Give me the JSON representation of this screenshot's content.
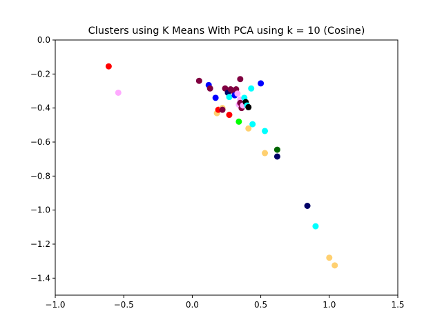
{
  "chart_data": {
    "type": "scatter",
    "title": "Clusters using K Means With PCA using k = 10 (Cosine)",
    "xlabel": "",
    "ylabel": "",
    "xlim": [
      -1.0,
      1.5
    ],
    "ylim": [
      -1.5,
      0.0
    ],
    "x_ticks": [
      -1.0,
      -0.5,
      0.0,
      0.5,
      1.0,
      1.5
    ],
    "x_tick_labels": [
      "−1.0",
      "−0.5",
      "0.0",
      "0.5",
      "1.0",
      "1.5"
    ],
    "y_ticks": [
      0.0,
      -0.2,
      -0.4,
      -0.6,
      -0.8,
      -1.0,
      -1.2,
      -1.4
    ],
    "y_tick_labels": [
      "0.0",
      "−0.2",
      "−0.4",
      "−0.6",
      "−0.8",
      "−1.0",
      "−1.2",
      "−1.4"
    ],
    "grid": false,
    "legend": false,
    "points": [
      {
        "x": -0.61,
        "y": -0.155,
        "color": "#ff0000"
      },
      {
        "x": -0.54,
        "y": -0.31,
        "color": "#ffaaff"
      },
      {
        "x": 0.05,
        "y": -0.24,
        "color": "#800040"
      },
      {
        "x": 0.12,
        "y": -0.265,
        "color": "#0000ff"
      },
      {
        "x": 0.13,
        "y": -0.285,
        "color": "#800040"
      },
      {
        "x": 0.17,
        "y": -0.34,
        "color": "#0000ff"
      },
      {
        "x": 0.18,
        "y": -0.43,
        "color": "#ffd070"
      },
      {
        "x": 0.19,
        "y": -0.41,
        "color": "#ff0000"
      },
      {
        "x": 0.22,
        "y": -0.4,
        "color": "#ffd070"
      },
      {
        "x": 0.22,
        "y": -0.41,
        "color": "#800040"
      },
      {
        "x": 0.24,
        "y": -0.285,
        "color": "#800040"
      },
      {
        "x": 0.26,
        "y": -0.31,
        "color": "#000066"
      },
      {
        "x": 0.27,
        "y": -0.335,
        "color": "#00ffff"
      },
      {
        "x": 0.27,
        "y": -0.44,
        "color": "#ff0000"
      },
      {
        "x": 0.28,
        "y": -0.29,
        "color": "#800040"
      },
      {
        "x": 0.3,
        "y": -0.3,
        "color": "#800040"
      },
      {
        "x": 0.31,
        "y": -0.325,
        "color": "#0000ff"
      },
      {
        "x": 0.32,
        "y": -0.29,
        "color": "#800040"
      },
      {
        "x": 0.33,
        "y": -0.315,
        "color": "#ffaaff"
      },
      {
        "x": 0.34,
        "y": -0.38,
        "color": "#ffaaff"
      },
      {
        "x": 0.34,
        "y": -0.48,
        "color": "#00ff00"
      },
      {
        "x": 0.35,
        "y": -0.35,
        "color": "#ffaaff"
      },
      {
        "x": 0.35,
        "y": -0.37,
        "color": "#800040"
      },
      {
        "x": 0.35,
        "y": -0.23,
        "color": "#800040"
      },
      {
        "x": 0.36,
        "y": -0.4,
        "color": "#800040"
      },
      {
        "x": 0.37,
        "y": -0.385,
        "color": "#ffaaff"
      },
      {
        "x": 0.38,
        "y": -0.34,
        "color": "#00ffff"
      },
      {
        "x": 0.39,
        "y": -0.365,
        "color": "#000000"
      },
      {
        "x": 0.4,
        "y": -0.385,
        "color": "#00ffff"
      },
      {
        "x": 0.41,
        "y": -0.395,
        "color": "#000000"
      },
      {
        "x": 0.41,
        "y": -0.52,
        "color": "#ffd070"
      },
      {
        "x": 0.43,
        "y": -0.285,
        "color": "#00ffff"
      },
      {
        "x": 0.44,
        "y": -0.495,
        "color": "#00ffff"
      },
      {
        "x": 0.5,
        "y": -0.255,
        "color": "#0000ff"
      },
      {
        "x": 0.53,
        "y": -0.535,
        "color": "#00ffff"
      },
      {
        "x": 0.53,
        "y": -0.665,
        "color": "#ffd070"
      },
      {
        "x": 0.62,
        "y": -0.645,
        "color": "#006600"
      },
      {
        "x": 0.62,
        "y": -0.685,
        "color": "#000066"
      },
      {
        "x": 0.84,
        "y": -0.975,
        "color": "#000066"
      },
      {
        "x": 0.9,
        "y": -1.095,
        "color": "#00ffff"
      },
      {
        "x": 1.0,
        "y": -1.28,
        "color": "#ffd070"
      },
      {
        "x": 1.04,
        "y": -1.325,
        "color": "#ffd070"
      }
    ]
  }
}
